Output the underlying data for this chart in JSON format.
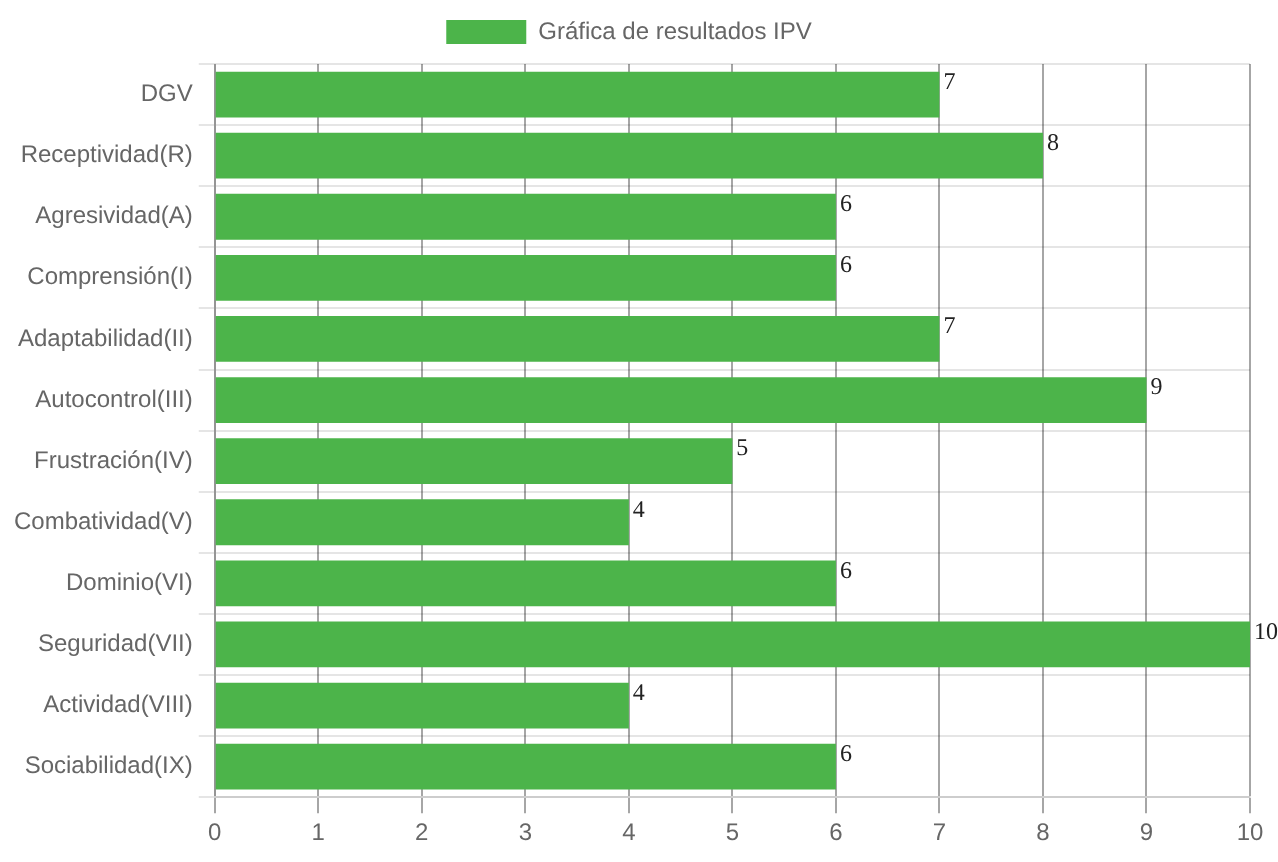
{
  "chart_data": {
    "type": "bar",
    "orientation": "horizontal",
    "categories": [
      "DGV",
      "Receptividad(R)",
      "Agresividad(A)",
      "Comprensión(I)",
      "Adaptabilidad(II)",
      "Autocontrol(III)",
      "Frustración(IV)",
      "Combatividad(V)",
      "Dominio(VI)",
      "Seguridad(VII)",
      "Actividad(VIII)",
      "Sociabilidad(IX)"
    ],
    "series": [
      {
        "name": "Gráfica de resultados IPV",
        "color": "#4cb44a",
        "values": [
          7,
          8,
          6,
          6,
          7,
          9,
          5,
          4,
          6,
          10,
          4,
          6
        ]
      }
    ],
    "xlim": [
      0,
      10
    ],
    "xticks": [
      0,
      1,
      2,
      3,
      4,
      5,
      6,
      7,
      8,
      9,
      10
    ],
    "grid": true,
    "legend": "top",
    "data_labels": true
  }
}
